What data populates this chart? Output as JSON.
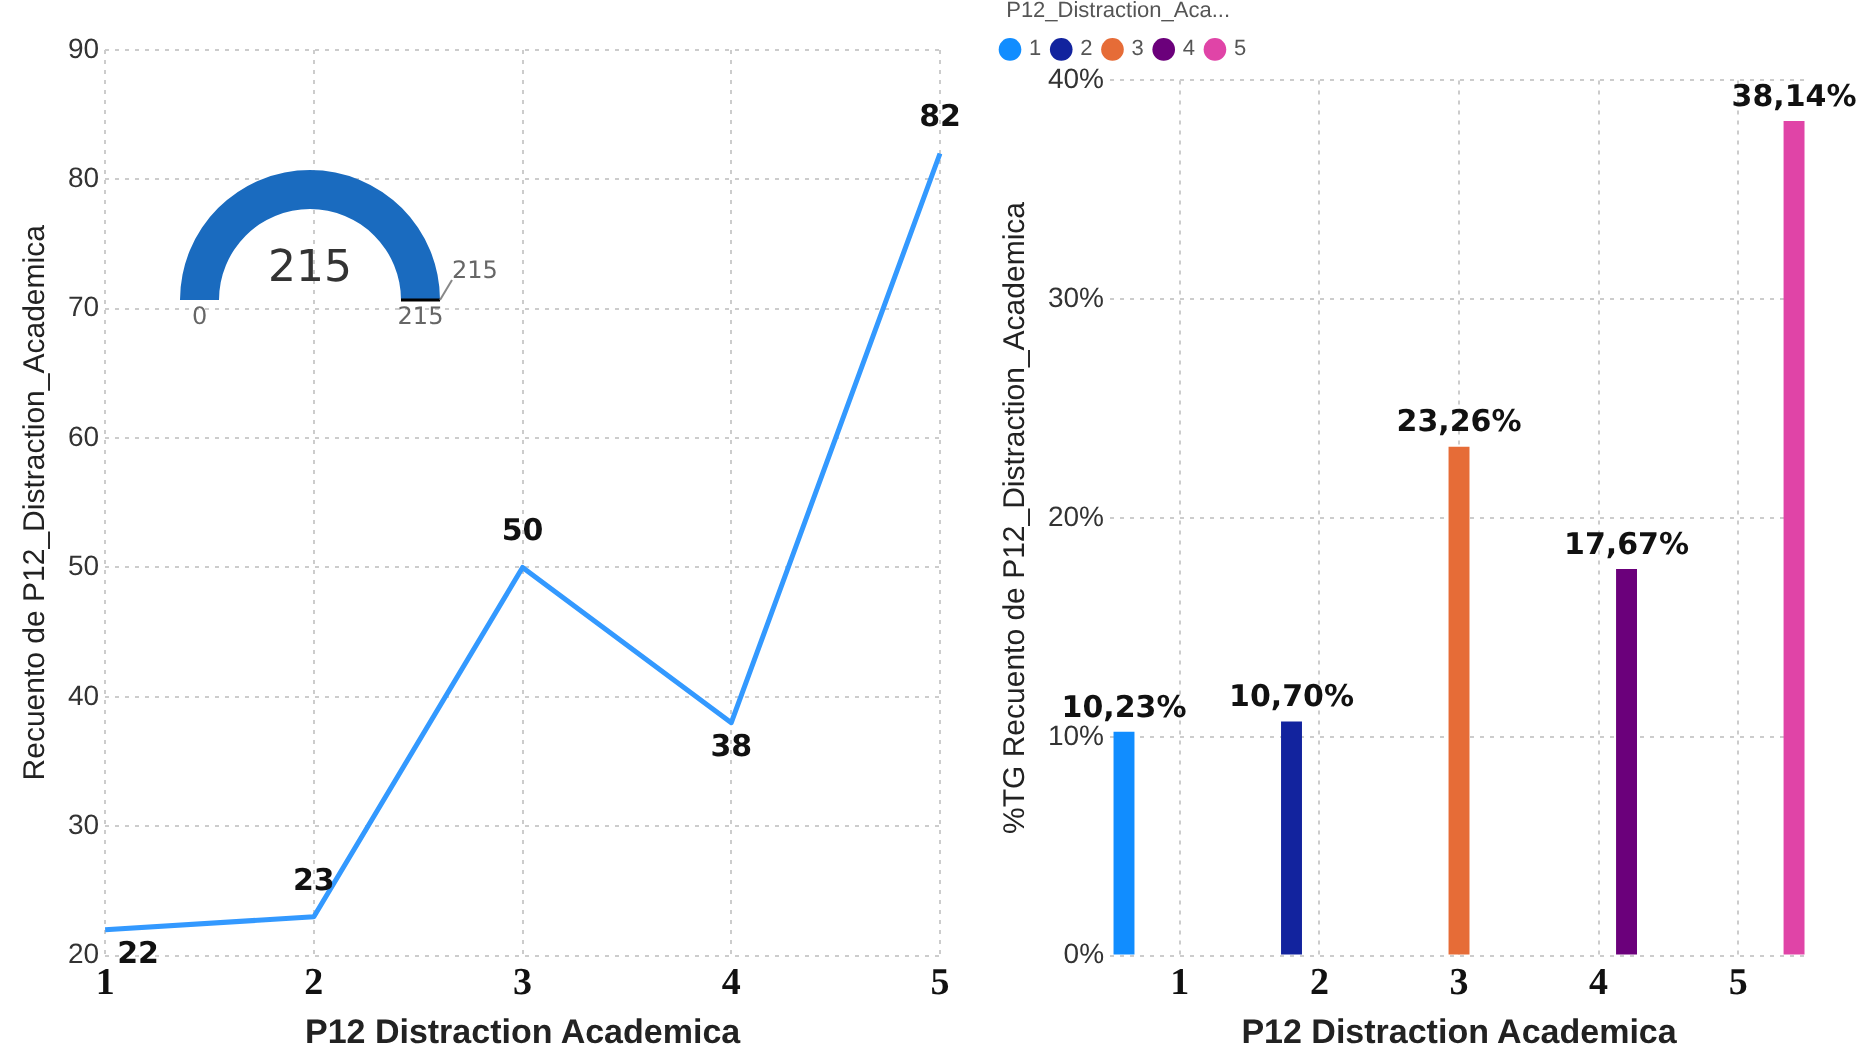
{
  "chart_data": [
    {
      "type": "line",
      "xlabel": "P12 Distraction Academica",
      "ylabel": "Recuento de P12_Distraction_Academica",
      "categories": [
        "1",
        "2",
        "3",
        "4",
        "5"
      ],
      "values": [
        22,
        23,
        50,
        38,
        82
      ],
      "color": "#3399ff",
      "ylim": [
        20,
        90
      ],
      "yticks": [
        20,
        30,
        40,
        50,
        60,
        70,
        80,
        90
      ],
      "grid": true,
      "data_labels": true,
      "marker": "none"
    },
    {
      "type": "pie",
      "categories": [
        null
      ],
      "values": [
        215
      ],
      "colors": [
        "#1a6bbf"
      ],
      "data_labels": true,
      "annotations": [
        "0",
        "215",
        "215"
      ]
    },
    {
      "type": "bar",
      "xlabel": "P12 Distraction Academica",
      "ylabel": "%TG Recuento de P12_Distraction_Academica",
      "legend_title": "P12_Distraction_Aca...",
      "legend": "top left",
      "categories": [
        "1",
        "2",
        "3",
        "4",
        "5"
      ],
      "series": [
        {
          "name": "1",
          "color": "#118dff",
          "values": [
            10.23,
            null,
            null,
            null,
            null
          ],
          "value_labels": [
            "10,23%",
            null,
            null,
            null,
            null
          ]
        },
        {
          "name": "2",
          "color": "#12239e",
          "values": [
            null,
            10.7,
            null,
            null,
            null
          ],
          "value_labels": [
            null,
            "10,70%",
            null,
            null,
            null
          ]
        },
        {
          "name": "3",
          "color": "#e66c37",
          "values": [
            null,
            null,
            23.26,
            null,
            null
          ],
          "value_labels": [
            null,
            null,
            "23,26%",
            null,
            null
          ]
        },
        {
          "name": "4",
          "color": "#6b007b",
          "values": [
            null,
            null,
            null,
            17.67,
            null
          ],
          "value_labels": [
            null,
            null,
            null,
            "17,67%",
            null
          ]
        },
        {
          "name": "5",
          "color": "#e044a7",
          "values": [
            null,
            null,
            null,
            null,
            38.14
          ],
          "value_labels": [
            null,
            null,
            null,
            null,
            "38,14%"
          ]
        }
      ],
      "ylim": [
        0,
        40
      ],
      "yticks": [
        {
          "value": 0,
          "label": "0%"
        },
        {
          "value": 10,
          "label": "10%"
        },
        {
          "value": 20,
          "label": "20%"
        },
        {
          "value": 30,
          "label": "30%"
        },
        {
          "value": 40,
          "label": "40%"
        }
      ],
      "grid": true
    }
  ]
}
